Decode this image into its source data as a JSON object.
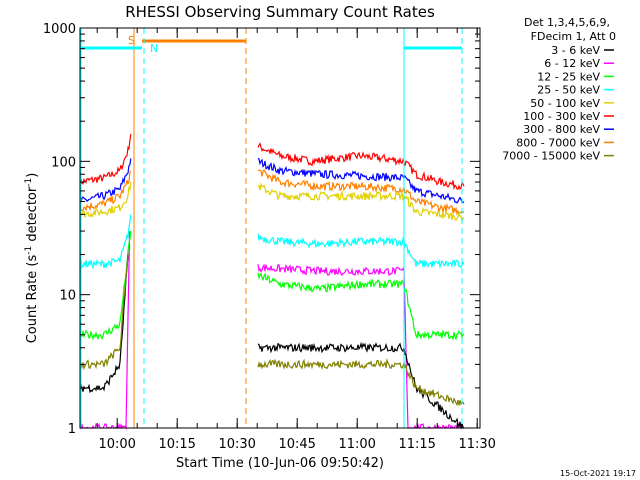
{
  "colors": {
    "frame": "#000000",
    "background": "#ffffff",
    "intervals": "#00ffff",
    "saa": "#ff8000",
    "night": "#ff8000"
  },
  "chart_data": {
    "type": "line",
    "title": "RHESSI Observing Summary Count Rates",
    "xlabel": "Start Time (10-Jun-06 09:50:42)",
    "ylabel": "Count Rate (s",
    "ylabel_sup1": "-1",
    "ylabel_mid": " detector",
    "ylabel_sup2": "-1",
    "ylabel_end": ")",
    "x_unit": "minutes after 09:50:42",
    "xlim": [
      0,
      100
    ],
    "ylim": [
      1,
      1000
    ],
    "yscale": "log",
    "xticks": [
      {
        "label": "10:00",
        "x": 9.3
      },
      {
        "label": "10:15",
        "x": 24.3
      },
      {
        "label": "10:30",
        "x": 39.3
      },
      {
        "label": "10:45",
        "x": 54.3
      },
      {
        "label": "11:00",
        "x": 69.3
      },
      {
        "label": "11:15",
        "x": 84.3
      },
      {
        "label": "11:30",
        "x": 99.3
      }
    ],
    "yticks": [
      {
        "label": "1",
        "y": 1
      },
      {
        "label": "10",
        "y": 10
      },
      {
        "label": "100",
        "y": 100
      },
      {
        "label": "1000",
        "y": 1000
      }
    ],
    "legend": {
      "header1": "Det 1,3,4,5,6,9,",
      "header2": "FDecim 1, Att 0",
      "entries": [
        {
          "label": "3 - 6 keV",
          "color": "#000000"
        },
        {
          "label": "6 - 12 keV",
          "color": "#ff00ff"
        },
        {
          "label": "12 - 25 keV",
          "color": "#00ff00"
        },
        {
          "label": "25 - 50 keV",
          "color": "#00ffff"
        },
        {
          "label": "50 - 100 keV",
          "color": "#e0d000"
        },
        {
          "label": "100 - 300 keV",
          "color": "#ff0000"
        },
        {
          "label": "300 - 800 keV",
          "color": "#0000ff"
        },
        {
          "label": "800 - 7000 keV",
          "color": "#ff8000"
        },
        {
          "label": "7000 - 15000 keV",
          "color": "#808000"
        }
      ]
    },
    "markers": {
      "s_label": "S",
      "n_label": "N",
      "saa": [
        15.5,
        41.5
      ],
      "night_start": 13.5,
      "intervals": [
        0,
        16,
        81,
        95.5
      ]
    },
    "series": [
      {
        "color": "#ff0000",
        "values": [
          [
            0,
            70
          ],
          [
            6,
            75
          ],
          [
            10,
            85
          ],
          [
            12,
            120
          ],
          [
            12.7,
            160
          ],
          [
            13,
            0
          ],
          [
            44,
            0
          ],
          [
            44.5,
            130
          ],
          [
            50,
            110
          ],
          [
            58,
            100
          ],
          [
            64,
            105
          ],
          [
            70,
            110
          ],
          [
            76,
            105
          ],
          [
            81,
            100
          ],
          [
            84,
            80
          ],
          [
            90,
            70
          ],
          [
            96,
            65
          ]
        ]
      },
      {
        "color": "#0000ff",
        "values": [
          [
            0,
            50
          ],
          [
            6,
            55
          ],
          [
            10,
            62
          ],
          [
            12,
            85
          ],
          [
            12.7,
            105
          ],
          [
            13,
            0
          ],
          [
            44,
            0
          ],
          [
            44.5,
            100
          ],
          [
            50,
            85
          ],
          [
            60,
            80
          ],
          [
            70,
            78
          ],
          [
            81,
            75
          ],
          [
            84,
            60
          ],
          [
            90,
            55
          ],
          [
            96,
            50
          ]
        ]
      },
      {
        "color": "#ff8000",
        "values": [
          [
            0,
            45
          ],
          [
            6,
            48
          ],
          [
            10,
            55
          ],
          [
            12,
            70
          ],
          [
            12.7,
            85
          ],
          [
            13,
            0
          ],
          [
            44,
            0
          ],
          [
            44.5,
            85
          ],
          [
            50,
            70
          ],
          [
            60,
            65
          ],
          [
            70,
            65
          ],
          [
            81,
            62
          ],
          [
            84,
            50
          ],
          [
            90,
            45
          ],
          [
            96,
            42
          ]
        ]
      },
      {
        "color": "#e0d000",
        "values": [
          [
            0,
            40
          ],
          [
            6,
            42
          ],
          [
            10,
            45
          ],
          [
            12,
            55
          ],
          [
            12.7,
            70
          ],
          [
            13,
            0
          ],
          [
            44,
            0
          ],
          [
            44.5,
            65
          ],
          [
            50,
            55
          ],
          [
            60,
            55
          ],
          [
            70,
            55
          ],
          [
            81,
            55
          ],
          [
            84,
            42
          ],
          [
            90,
            40
          ],
          [
            96,
            38
          ]
        ]
      },
      {
        "color": "#00ffff",
        "values": [
          [
            0,
            17
          ],
          [
            6,
            17
          ],
          [
            10,
            18
          ],
          [
            12,
            28
          ],
          [
            12.7,
            40
          ],
          [
            13,
            0
          ],
          [
            44,
            0
          ],
          [
            44.5,
            27
          ],
          [
            50,
            25
          ],
          [
            60,
            24
          ],
          [
            70,
            25
          ],
          [
            81,
            25
          ],
          [
            84,
            17
          ],
          [
            90,
            17
          ],
          [
            96,
            17
          ]
        ]
      },
      {
        "color": "#ff00ff",
        "values": [
          [
            0,
            1
          ],
          [
            11.5,
            1
          ],
          [
            12.4,
            30
          ],
          [
            13,
            0
          ],
          [
            44,
            0
          ],
          [
            44.5,
            16
          ],
          [
            60,
            15
          ],
          [
            81,
            15
          ],
          [
            82,
            1
          ],
          [
            96,
            1
          ]
        ]
      },
      {
        "color": "#00ff00",
        "values": [
          [
            0,
            5
          ],
          [
            6,
            5
          ],
          [
            10,
            6
          ],
          [
            12,
            20
          ],
          [
            12.7,
            30
          ],
          [
            13,
            0
          ],
          [
            44,
            0
          ],
          [
            44.5,
            14
          ],
          [
            50,
            12
          ],
          [
            60,
            11
          ],
          [
            70,
            12
          ],
          [
            81,
            12
          ],
          [
            84,
            5
          ],
          [
            96,
            5
          ]
        ]
      },
      {
        "color": "#000000",
        "values": [
          [
            0,
            2
          ],
          [
            6,
            2
          ],
          [
            10,
            3
          ],
          [
            12,
            20
          ],
          [
            13,
            0
          ],
          [
            44,
            0
          ],
          [
            44.5,
            4
          ],
          [
            60,
            4
          ],
          [
            81,
            4
          ],
          [
            84,
            2
          ],
          [
            96,
            1
          ]
        ]
      },
      {
        "color": "#808000",
        "values": [
          [
            0,
            3
          ],
          [
            6,
            3
          ],
          [
            10,
            4
          ],
          [
            12,
            20
          ],
          [
            13,
            0
          ],
          [
            44,
            0
          ],
          [
            44.5,
            3
          ],
          [
            60,
            3
          ],
          [
            81,
            3
          ],
          [
            84,
            2
          ],
          [
            96,
            1.5
          ]
        ]
      }
    ]
  },
  "footer": {
    "timestamp": "15-Oct-2021 19:17"
  }
}
